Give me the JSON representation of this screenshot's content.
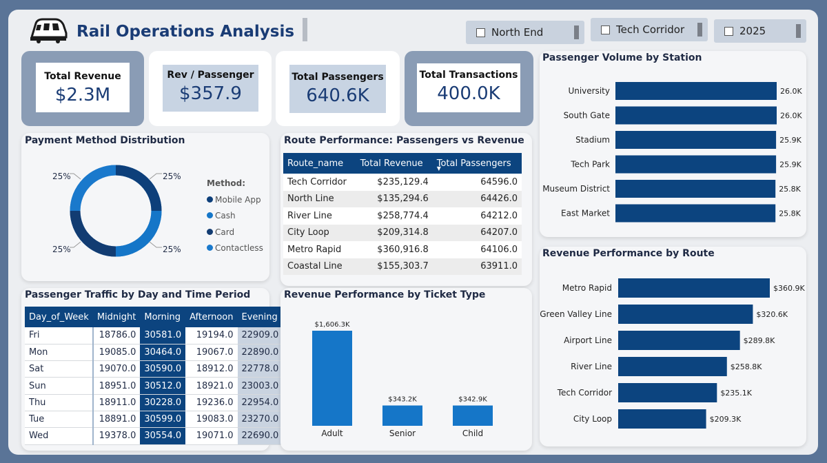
{
  "header": {
    "title": "Rail Operations Analysis",
    "icon": "train-icon"
  },
  "slicers": [
    {
      "label": "North End"
    },
    {
      "label": "Tech Corridor"
    },
    {
      "label": "2025"
    }
  ],
  "kpis": [
    {
      "label": "Total Revenue",
      "value": "$2.3M"
    },
    {
      "label": "Rev / Passenger",
      "value": "$357.9"
    },
    {
      "label": "Total Passengers",
      "value": "640.6K"
    },
    {
      "label": "Total Transactions",
      "value": "400.0K"
    }
  ],
  "payment": {
    "title": "Payment Method Distribution",
    "legend_title": "Method:",
    "slices": [
      {
        "name": "Mobile App",
        "pct": "25%",
        "color": "#0d3f7a"
      },
      {
        "name": "Cash",
        "pct": "25%",
        "color": "#1576c8"
      },
      {
        "name": "Card",
        "pct": "25%",
        "color": "#123c72"
      },
      {
        "name": "Contactless",
        "pct": "25%",
        "color": "#1a79cc"
      }
    ]
  },
  "route_table": {
    "title": "Route Performance: Passengers vs Revenue",
    "columns": [
      "Route_name",
      "Total Revenue",
      "Total Passengers"
    ],
    "rows": [
      [
        "Tech Corridor",
        "$235,129.4",
        "64596.0"
      ],
      [
        "North Line",
        "$135,294.6",
        "64426.0"
      ],
      [
        "River Line",
        "$258,774.4",
        "64212.0"
      ],
      [
        "City Loop",
        "$209,314.8",
        "64207.0"
      ],
      [
        "Metro Rapid",
        "$360,916.8",
        "64106.0"
      ],
      [
        "Coastal Line",
        "$155,303.7",
        "63911.0"
      ]
    ]
  },
  "traffic_table": {
    "title": "Passenger Traffic by Day and Time Period",
    "columns": [
      "Day_of_Week",
      "Midnight",
      "Morning",
      "Afternoon",
      "Evening"
    ],
    "rows": [
      [
        "Fri",
        "18786.0",
        "30581.0",
        "19194.0",
        "22909.0"
      ],
      [
        "Mon",
        "19085.0",
        "30464.0",
        "19067.0",
        "22890.0"
      ],
      [
        "Sat",
        "19070.0",
        "30590.0",
        "18912.0",
        "22778.0"
      ],
      [
        "Sun",
        "18951.0",
        "30512.0",
        "18921.0",
        "23003.0"
      ],
      [
        "Thu",
        "18911.0",
        "30228.0",
        "19236.0",
        "22954.0"
      ],
      [
        "Tue",
        "18891.0",
        "30599.0",
        "19083.0",
        "23270.0"
      ],
      [
        "Wed",
        "19378.0",
        "30554.0",
        "19071.0",
        "22690.0"
      ]
    ]
  },
  "chart_data": [
    {
      "type": "bar",
      "orientation": "horizontal",
      "title": "Passenger Volume by Station",
      "categories": [
        "University",
        "South Gate",
        "Stadium",
        "Tech Park",
        "Museum District",
        "East Market"
      ],
      "values": [
        26.0,
        26.0,
        25.9,
        25.9,
        25.8,
        25.8
      ],
      "labels": [
        "26.0K",
        "26.0K",
        "25.9K",
        "25.9K",
        "25.8K",
        "25.8K"
      ],
      "color": "#0c447f"
    },
    {
      "type": "bar",
      "orientation": "vertical",
      "title": "Revenue Performance by Ticket Type",
      "categories": [
        "Adult",
        "Senior",
        "Child"
      ],
      "values": [
        1606.3,
        343.2,
        342.9
      ],
      "labels": [
        "$1,606.3K",
        "$343.2K",
        "$342.9K"
      ],
      "color": "#1576c8"
    },
    {
      "type": "bar",
      "orientation": "horizontal",
      "title": "Revenue Performance by Route",
      "categories": [
        "Metro Rapid",
        "Green Valley Line",
        "Airport Line",
        "River Line",
        "Tech Corridor",
        "City Loop"
      ],
      "values": [
        360.9,
        320.6,
        289.8,
        258.8,
        235.1,
        209.3
      ],
      "labels": [
        "$360.9K",
        "$320.6K",
        "$289.8K",
        "$258.8K",
        "$235.1K",
        "$209.3K"
      ],
      "color": "#0c447f"
    }
  ]
}
